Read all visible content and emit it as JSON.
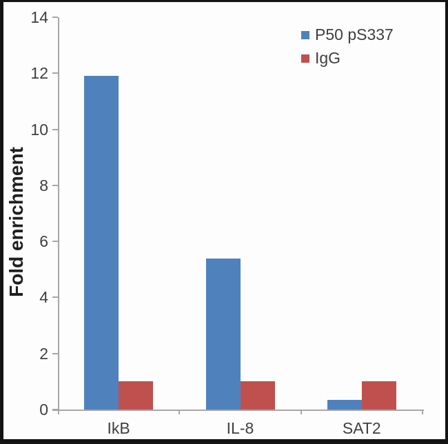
{
  "chart_data": {
    "type": "bar",
    "title": "",
    "xlabel": "",
    "ylabel": "Fold enrichment",
    "categories": [
      "IkB",
      "IL-8",
      "SAT2"
    ],
    "series": [
      {
        "name": "P50 pS337",
        "color": "#4f81bd",
        "values": [
          11.9,
          5.4,
          0.35
        ]
      },
      {
        "name": "IgG",
        "color": "#c0504d",
        "values": [
          1.0,
          1.0,
          1.0
        ]
      }
    ],
    "ylim": [
      0,
      14
    ],
    "yticks": [
      0,
      2,
      4,
      6,
      8,
      10,
      12,
      14
    ],
    "grid": false,
    "legend_position": "top-right"
  },
  "colors": {
    "axis": "#a6a6a6",
    "tick_text": "#3f3f3f",
    "axis_title_text": "#1f1f1f",
    "frame": "#141414",
    "background": "#ffffff"
  }
}
